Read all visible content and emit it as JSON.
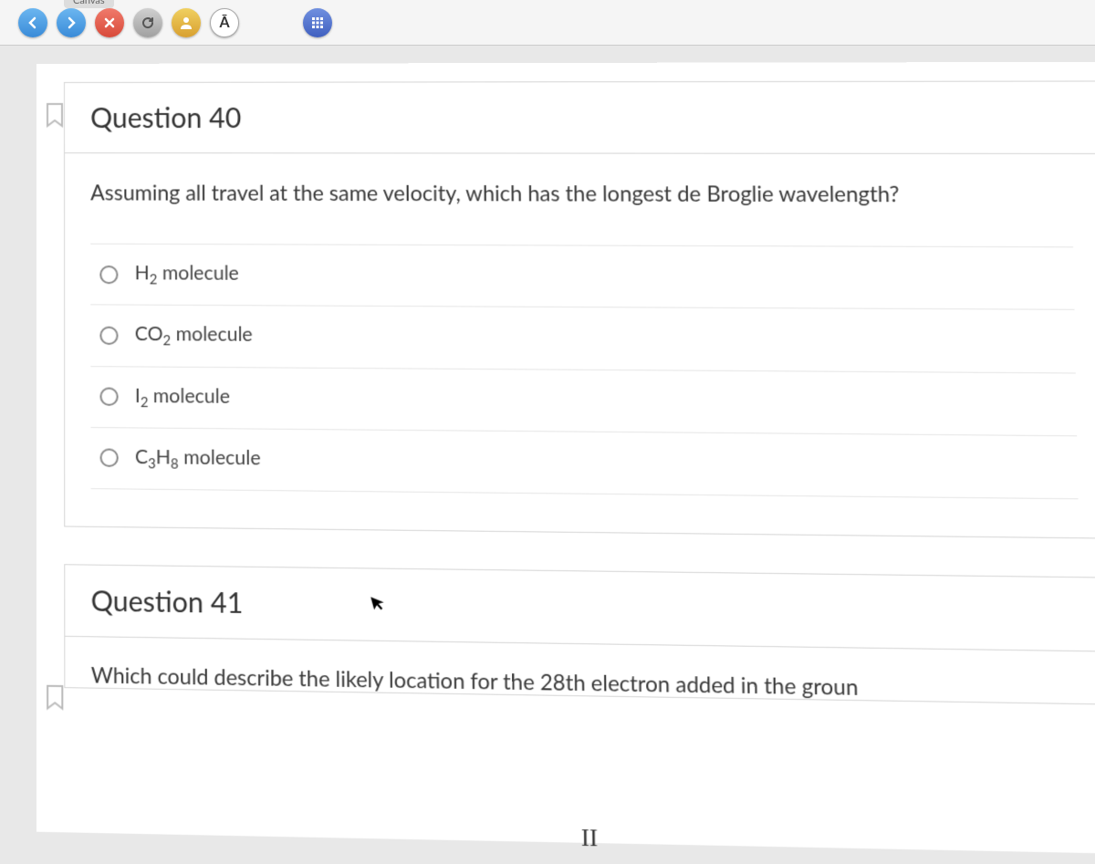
{
  "toolbar": {
    "tab_label": "Canvas",
    "a_label": "Ā"
  },
  "question40": {
    "title": "Question 40",
    "prompt": "Assuming all travel at the same velocity, which has the longest de Broglie wavelength?",
    "options": [
      {
        "formula_html": "H<sub>2</sub> molecule"
      },
      {
        "formula_html": "CO<sub>2</sub> molecule"
      },
      {
        "formula_html": "I<sub>2</sub> molecule"
      },
      {
        "formula_html": "C<sub>3</sub>H<sub>8</sub> molecule"
      }
    ]
  },
  "question41": {
    "title": "Question 41",
    "prompt_partial": "Which could describe the likely location for the 28th electron added in the groun",
    "roman": "II"
  },
  "colors": {
    "card_border": "#d6d6d6",
    "text": "#333333",
    "body_bg": "#e8e8e8"
  }
}
